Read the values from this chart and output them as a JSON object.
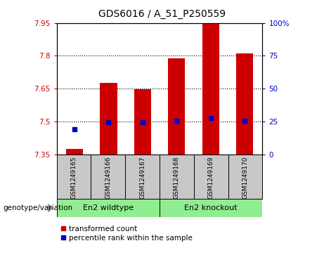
{
  "title": "GDS6016 / A_51_P250559",
  "samples": [
    "GSM1249165",
    "GSM1249166",
    "GSM1249167",
    "GSM1249168",
    "GSM1249169",
    "GSM1249170"
  ],
  "transformed_count": [
    7.375,
    7.675,
    7.648,
    7.788,
    7.95,
    7.81
  ],
  "percentile_rank": [
    7.465,
    7.497,
    7.497,
    7.502,
    7.515,
    7.502
  ],
  "ylim_left": [
    7.35,
    7.95
  ],
  "ylim_right": [
    0,
    100
  ],
  "yticks_left": [
    7.35,
    7.5,
    7.65,
    7.8,
    7.95
  ],
  "yticks_right": [
    0,
    25,
    50,
    75,
    100
  ],
  "ytick_labels_left": [
    "7.35",
    "7.5",
    "7.65",
    "7.8",
    "7.95"
  ],
  "ytick_labels_right": [
    "0",
    "25",
    "50",
    "75",
    "100%"
  ],
  "bar_color": "#cc0000",
  "dot_color": "#0000cc",
  "background_xticklabels": "#c8c8c8",
  "group1_label": "En2 wildtype",
  "group2_label": "En2 knockout",
  "group1_color": "#90ee90",
  "group2_color": "#90ee90",
  "genotype_label": "genotype/variation",
  "legend_bar_label": "transformed count",
  "legend_dot_label": "percentile rank within the sample",
  "bar_bottom": 7.35,
  "n_group1": 3,
  "n_group2": 3
}
